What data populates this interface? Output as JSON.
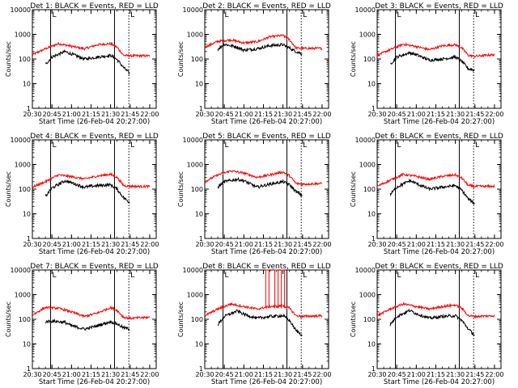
{
  "chart_data": [
    {
      "type": "line",
      "title": "Det 1: BLACK = Events, RED = LLD",
      "xlabel": "Start Time (26-Feb-04 20:27:00)",
      "ylabel": "Counts/sec",
      "yscale": "log",
      "ylim": [
        1,
        10000
      ],
      "xlim": [
        "20:30",
        "22:05"
      ],
      "xticks": [
        "20:30",
        "20:45",
        "21:00",
        "21:15",
        "21:30",
        "21:45",
        "22:00"
      ],
      "yticks": [
        "1",
        "10",
        "100",
        "1000",
        "10000"
      ],
      "series": [
        {
          "name": "RED = LLD",
          "color": "#ff0000",
          "x": [
            "20:30",
            "20:40",
            "20:50",
            "21:00",
            "21:10",
            "21:20",
            "21:30",
            "21:35",
            "21:40",
            "21:45",
            "22:00"
          ],
          "values": [
            150,
            260,
            420,
            330,
            260,
            380,
            420,
            300,
            140,
            135,
            135
          ]
        },
        {
          "name": "BLACK = Events",
          "color": "#000000",
          "x": [
            "20:40",
            "20:45",
            "20:55",
            "21:00",
            "21:10",
            "21:20",
            "21:30",
            "21:35",
            "21:40",
            "21:45"
          ],
          "values": [
            60,
            120,
            200,
            160,
            100,
            120,
            140,
            95,
            45,
            25
          ]
        }
      ],
      "markers": {
        "solid": [
          "20:44",
          "21:33"
        ],
        "dotted": [
          "21:44"
        ],
        "label": "L"
      }
    },
    {
      "type": "line",
      "title": "Det 2: BLACK = Events, RED = LLD",
      "xlabel": "Start Time (26-Feb-04 20:27:00)",
      "ylabel": "Counts/sec",
      "yscale": "log",
      "ylim": [
        1,
        10000
      ],
      "xlim": [
        "20:30",
        "22:05"
      ],
      "xticks": [
        "20:30",
        "20:45",
        "21:00",
        "21:15",
        "21:30",
        "21:45",
        "22:00"
      ],
      "yticks": [
        "1",
        "10",
        "100",
        "1000",
        "10000"
      ],
      "series": [
        {
          "name": "RED = LLD",
          "color": "#ff0000",
          "x": [
            "20:30",
            "20:40",
            "20:50",
            "21:00",
            "21:10",
            "21:20",
            "21:30",
            "21:35",
            "21:40",
            "21:45",
            "22:00"
          ],
          "values": [
            300,
            520,
            600,
            450,
            500,
            800,
            900,
            600,
            280,
            270,
            270
          ]
        },
        {
          "name": "BLACK = Events",
          "color": "#000000",
          "x": [
            "20:40",
            "20:45",
            "20:55",
            "21:00",
            "21:10",
            "21:20",
            "21:30",
            "21:35",
            "21:40",
            "21:45"
          ],
          "values": [
            250,
            400,
            300,
            230,
            260,
            350,
            380,
            280,
            200,
            160
          ]
        }
      ],
      "markers": {
        "solid": [
          "20:44",
          "21:33"
        ],
        "dotted": [
          "21:44"
        ],
        "label": "L"
      }
    },
    {
      "type": "line",
      "title": "Det 3: BLACK = Events, RED = LLD",
      "xlabel": "Start Time (26-Feb-04 20:27:00)",
      "ylabel": "Counts/sec",
      "yscale": "log",
      "ylim": [
        1,
        10000
      ],
      "xlim": [
        "20:30",
        "22:05"
      ],
      "xticks": [
        "20:30",
        "20:45",
        "21:00",
        "21:15",
        "21:30",
        "21:45",
        "22:00"
      ],
      "yticks": [
        "1",
        "10",
        "100",
        "1000",
        "10000"
      ],
      "series": [
        {
          "name": "RED = LLD",
          "color": "#ff0000",
          "x": [
            "20:30",
            "20:40",
            "20:50",
            "21:00",
            "21:10",
            "21:20",
            "21:30",
            "21:35",
            "21:40",
            "21:45",
            "22:00"
          ],
          "values": [
            140,
            240,
            400,
            320,
            240,
            340,
            380,
            280,
            140,
            130,
            150
          ]
        },
        {
          "name": "BLACK = Events",
          "color": "#000000",
          "x": [
            "20:40",
            "20:45",
            "20:55",
            "21:00",
            "21:10",
            "21:20",
            "21:30",
            "21:35",
            "21:40",
            "21:45"
          ],
          "values": [
            60,
            120,
            180,
            150,
            90,
            100,
            120,
            80,
            40,
            35
          ]
        }
      ],
      "markers": {
        "solid": [
          "20:44",
          "21:33"
        ],
        "dotted": [
          "21:44"
        ],
        "label": "L"
      }
    },
    {
      "type": "line",
      "title": "Det 4: BLACK = Events, RED = LLD",
      "xlabel": "Start Time (26-Feb-04 20:27:00)",
      "ylabel": "Counts/sec",
      "yscale": "log",
      "ylim": [
        1,
        10000
      ],
      "xlim": [
        "20:30",
        "22:05"
      ],
      "xticks": [
        "20:30",
        "20:45",
        "21:00",
        "21:15",
        "21:30",
        "21:45",
        "22:00"
      ],
      "yticks": [
        "1",
        "10",
        "100",
        "1000",
        "10000"
      ],
      "series": [
        {
          "name": "RED = LLD",
          "color": "#ff0000",
          "x": [
            "20:30",
            "20:40",
            "20:50",
            "21:00",
            "21:10",
            "21:20",
            "21:30",
            "21:35",
            "21:40",
            "21:45",
            "22:00"
          ],
          "values": [
            120,
            200,
            380,
            320,
            260,
            340,
            400,
            300,
            140,
            130,
            130
          ]
        },
        {
          "name": "BLACK = Events",
          "color": "#000000",
          "x": [
            "20:40",
            "20:45",
            "20:55",
            "21:00",
            "21:10",
            "21:20",
            "21:30",
            "21:35",
            "21:40",
            "21:45"
          ],
          "values": [
            50,
            110,
            220,
            180,
            120,
            140,
            150,
            100,
            45,
            28
          ]
        }
      ],
      "markers": {
        "solid": [
          "20:44",
          "21:33"
        ],
        "dotted": [
          "21:44"
        ],
        "label": "L"
      }
    },
    {
      "type": "line",
      "title": "Det 5: BLACK = Events, RED = LLD",
      "xlabel": "Start Time (26-Feb-04 20:27:00)",
      "ylabel": "Counts/sec",
      "yscale": "log",
      "ylim": [
        1,
        10000
      ],
      "xlim": [
        "20:30",
        "22:05"
      ],
      "xticks": [
        "20:30",
        "20:45",
        "21:00",
        "21:15",
        "21:30",
        "21:45",
        "22:00"
      ],
      "yticks": [
        "1",
        "10",
        "100",
        "1000",
        "10000"
      ],
      "series": [
        {
          "name": "RED = LLD",
          "color": "#ff0000",
          "x": [
            "20:30",
            "20:40",
            "20:50",
            "21:00",
            "21:10",
            "21:20",
            "21:30",
            "21:35",
            "21:40",
            "21:45",
            "22:00"
          ],
          "values": [
            200,
            380,
            550,
            450,
            300,
            380,
            500,
            350,
            170,
            160,
            170
          ]
        },
        {
          "name": "BLACK = Events",
          "color": "#000000",
          "x": [
            "20:40",
            "20:45",
            "20:55",
            "21:00",
            "21:10",
            "21:20",
            "21:30",
            "21:35",
            "21:40",
            "21:45"
          ],
          "values": [
            120,
            200,
            250,
            220,
            120,
            160,
            200,
            150,
            80,
            55
          ]
        }
      ],
      "markers": {
        "solid": [
          "20:44",
          "21:33"
        ],
        "dotted": [
          "21:44"
        ],
        "label": "L"
      }
    },
    {
      "type": "line",
      "title": "Det 6: BLACK = Events, RED = LLD",
      "xlabel": "Start Time (26-Feb-04 20:27:00)",
      "ylabel": "Counts/sec",
      "yscale": "log",
      "ylim": [
        1,
        10000
      ],
      "xlim": [
        "20:30",
        "22:05"
      ],
      "xticks": [
        "20:30",
        "20:45",
        "21:00",
        "21:15",
        "21:30",
        "21:45",
        "22:00"
      ],
      "yticks": [
        "1",
        "10",
        "100",
        "1000",
        "10000"
      ],
      "series": [
        {
          "name": "RED = LLD",
          "color": "#ff0000",
          "x": [
            "20:30",
            "20:40",
            "20:50",
            "21:00",
            "21:10",
            "21:20",
            "21:30",
            "21:35",
            "21:40",
            "21:45",
            "22:00"
          ],
          "values": [
            130,
            230,
            400,
            330,
            250,
            330,
            380,
            280,
            140,
            130,
            130
          ]
        },
        {
          "name": "BLACK = Events",
          "color": "#000000",
          "x": [
            "20:40",
            "20:45",
            "20:55",
            "21:00",
            "21:10",
            "21:20",
            "21:30",
            "21:35",
            "21:40",
            "21:45"
          ],
          "values": [
            60,
            120,
            220,
            170,
            100,
            120,
            140,
            90,
            40,
            25
          ]
        }
      ],
      "markers": {
        "solid": [
          "20:44",
          "21:33"
        ],
        "dotted": [
          "21:44"
        ],
        "label": "L"
      }
    },
    {
      "type": "line",
      "title": "Det 7: BLACK = Events, RED = LLD",
      "xlabel": "Start Time (26-Feb-04 20:27:00)",
      "ylabel": "Counts/sec",
      "yscale": "log",
      "ylim": [
        1,
        10000
      ],
      "xlim": [
        "20:30",
        "22:05"
      ],
      "xticks": [
        "20:30",
        "20:45",
        "21:00",
        "21:15",
        "21:30",
        "21:45",
        "22:00"
      ],
      "yticks": [
        "1",
        "10",
        "100",
        "1000",
        "10000"
      ],
      "series": [
        {
          "name": "RED = LLD",
          "color": "#ff0000",
          "x": [
            "20:30",
            "20:40",
            "20:50",
            "21:00",
            "21:10",
            "21:20",
            "21:30",
            "21:35",
            "21:40",
            "21:45",
            "22:00"
          ],
          "values": [
            150,
            300,
            280,
            200,
            130,
            180,
            300,
            230,
            120,
            110,
            120
          ]
        },
        {
          "name": "BLACK = Events",
          "color": "#000000",
          "x": [
            "20:40",
            "20:45",
            "20:55",
            "21:00",
            "21:10",
            "21:20",
            "21:30",
            "21:35",
            "21:40",
            "21:45"
          ],
          "values": [
            80,
            85,
            75,
            55,
            40,
            55,
            80,
            65,
            45,
            40
          ]
        }
      ],
      "markers": {
        "solid": [
          "20:44",
          "21:33"
        ],
        "dotted": [
          "21:44"
        ],
        "label": "L"
      }
    },
    {
      "type": "line",
      "title": "Det 8: BLACK = Events, RED = LLD",
      "xlabel": "Start Time (26-Feb-04 20:27:00)",
      "ylabel": "Counts/sec",
      "yscale": "log",
      "ylim": [
        1,
        10000
      ],
      "xlim": [
        "20:30",
        "22:05"
      ],
      "xticks": [
        "20:30",
        "20:45",
        "21:00",
        "21:15",
        "21:30",
        "21:45",
        "22:00"
      ],
      "yticks": [
        "1",
        "10",
        "100",
        "1000",
        "10000"
      ],
      "series": [
        {
          "name": "RED = LLD",
          "color": "#ff0000",
          "x": [
            "20:30",
            "20:40",
            "20:50",
            "21:00",
            "21:10",
            "21:20",
            "21:30",
            "21:35",
            "21:40",
            "21:45",
            "22:00"
          ],
          "values": [
            140,
            260,
            420,
            330,
            260,
            330,
            350,
            280,
            140,
            130,
            140
          ]
        },
        {
          "name": "BLACK = Events",
          "color": "#000000",
          "x": [
            "20:40",
            "20:45",
            "20:55",
            "21:00",
            "21:10",
            "21:20",
            "21:30",
            "21:35",
            "21:40",
            "21:45"
          ],
          "values": [
            60,
            130,
            220,
            160,
            110,
            130,
            140,
            90,
            35,
            22
          ]
        }
      ],
      "spikes": {
        "x": [
          "21:18",
          "21:25",
          "21:30"
        ],
        "value": 10000
      },
      "markers": {
        "solid": [
          "20:44",
          "21:33"
        ],
        "dotted": [
          "21:44"
        ],
        "label": "L"
      }
    },
    {
      "type": "line",
      "title": "Det 9: BLACK = Events, RED = LLD",
      "xlabel": "Start Time (26-Feb-04 20:27:00)",
      "ylabel": "Counts/sec",
      "yscale": "log",
      "ylim": [
        1,
        10000
      ],
      "xlim": [
        "20:30",
        "22:05"
      ],
      "xticks": [
        "20:30",
        "20:45",
        "21:00",
        "21:15",
        "21:30",
        "21:45",
        "22:00"
      ],
      "yticks": [
        "1",
        "10",
        "100",
        "1000",
        "10000"
      ],
      "series": [
        {
          "name": "RED = LLD",
          "color": "#ff0000",
          "x": [
            "20:30",
            "20:40",
            "20:50",
            "21:00",
            "21:10",
            "21:20",
            "21:30",
            "21:35",
            "21:40",
            "21:45",
            "22:00"
          ],
          "values": [
            140,
            260,
            420,
            330,
            260,
            330,
            380,
            280,
            140,
            130,
            140
          ]
        },
        {
          "name": "BLACK = Events",
          "color": "#000000",
          "x": [
            "20:40",
            "20:45",
            "20:55",
            "21:00",
            "21:10",
            "21:20",
            "21:30",
            "21:35",
            "21:40",
            "21:45"
          ],
          "values": [
            60,
            130,
            230,
            170,
            110,
            130,
            140,
            90,
            40,
            22
          ]
        }
      ],
      "markers": {
        "solid": [
          "20:44",
          "21:33"
        ],
        "dotted": [
          "21:44"
        ],
        "label": "L"
      }
    }
  ]
}
